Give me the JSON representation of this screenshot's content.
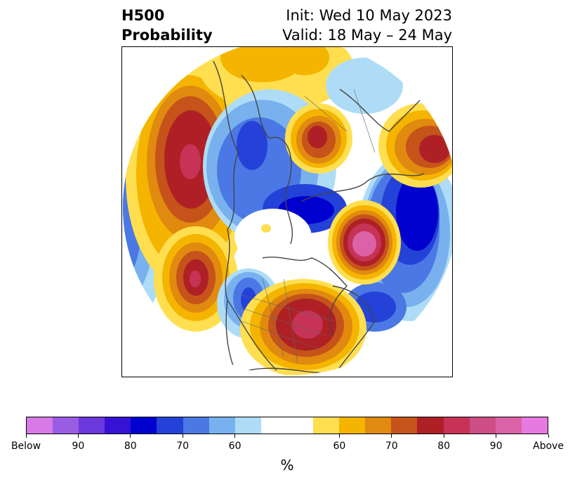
{
  "title": {
    "left_line1": "H500",
    "left_line2": "Probability",
    "right_line1": "Init: Wed 10 May 2023",
    "right_line2": "Valid: 18 May – 24 May"
  },
  "colorbar": {
    "unit_label": "%",
    "colors": [
      "#d77ae7",
      "#9a5ce3",
      "#6b38dc",
      "#3612d4",
      "#0000cf",
      "#2442d8",
      "#4b78e4",
      "#78b1ee",
      "#aedcf7",
      "#ffffff",
      "#ffffff",
      "#ffdf4f",
      "#f4b400",
      "#e08a10",
      "#c5531a",
      "#ae2026",
      "#c63356",
      "#cd4e85",
      "#dc62a8",
      "#e77ae0"
    ],
    "tick_labels": [
      "Below",
      "90",
      "80",
      "70",
      "60",
      "60",
      "70",
      "80",
      "90",
      "Above"
    ]
  },
  "map": {
    "projection": "north-polar-stereographic",
    "colors": {
      "above_yellow": "#ffdf4f",
      "above_gold": "#f4b400",
      "above_orange": "#e08a10",
      "above_rust": "#c5531a",
      "above_red": "#ae2026",
      "above_crimson": "#c63356",
      "above_pink": "#dc62a8",
      "below_lightblue": "#aedcf7",
      "below_skyblue": "#78b1ee",
      "below_blue": "#4b78e4",
      "below_royal": "#2442d8",
      "below_deep": "#0000cf",
      "coastline": "#444444"
    }
  }
}
